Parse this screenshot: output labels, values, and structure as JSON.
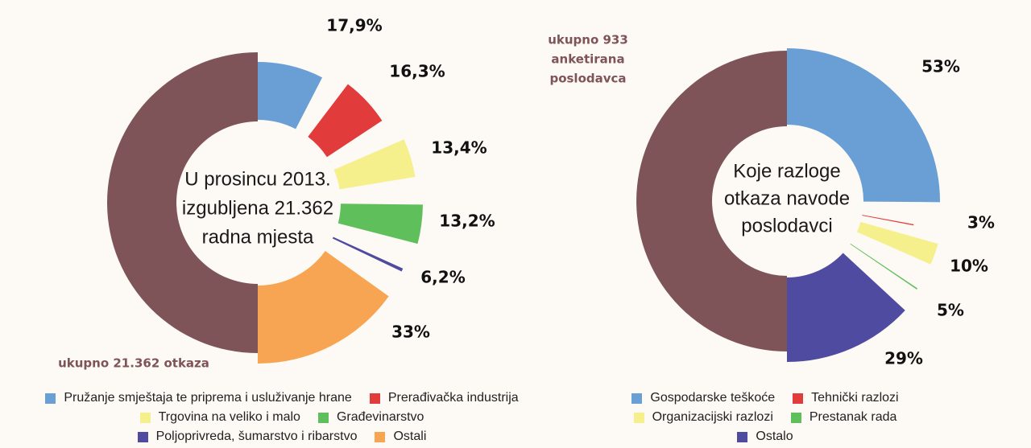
{
  "chart_data": [
    {
      "type": "pie",
      "center_text": [
        "U prosincu 2013.",
        "izgubljena 21.362",
        "radna mjesta"
      ],
      "total_label": "ukupno 21.362 otkaza",
      "slices": [
        {
          "name": "Pružanje smještaja te priprema i usluživanje hrane",
          "value": 17.9,
          "label": "17,9%",
          "color": "#6a9fd6"
        },
        {
          "name": "Prerađivačka industrija",
          "value": 16.3,
          "label": "16,3%",
          "color": "#e23b3b"
        },
        {
          "name": "Trgovina na veliko i malo",
          "value": 13.4,
          "label": "13,4%",
          "color": "#f6f08c"
        },
        {
          "name": "Građevinarstvo",
          "value": 13.2,
          "label": "13,2%",
          "color": "#5fbf5b"
        },
        {
          "name": "Poljoprivreda, šumarstvo i ribarstvo",
          "value": 6.2,
          "label": "6,2%",
          "color": "#4e4ba0"
        },
        {
          "name": "Ostali",
          "value": 33,
          "label": "33%",
          "color": "#f7a553"
        }
      ],
      "total_color": "#7e5458",
      "legend_rows": [
        [
          "Pružanje smještaja te priprema i usluživanje hrane",
          "Prerađivačka industrija"
        ],
        [
          "Trgovina na veliko i malo",
          "Građevinarstvo"
        ],
        [
          "Poljoprivreda, šumarstvo i ribarstvo",
          "Ostali"
        ]
      ]
    },
    {
      "type": "pie",
      "center_text": [
        "Koje razloge",
        "otkaza navode",
        "poslodavci"
      ],
      "total_label": [
        "ukupno 933",
        "anketirana",
        "poslodavca"
      ],
      "slices": [
        {
          "name": "Gospodarske teškoće",
          "value": 53,
          "label": "53%",
          "color": "#6a9fd6"
        },
        {
          "name": "Tehnički razlozi",
          "value": 3,
          "label": "3%",
          "color": "#e23b3b"
        },
        {
          "name": "Organizacijski razlozi",
          "value": 10,
          "label": "10%",
          "color": "#f6f08c"
        },
        {
          "name": "Prestanak rada",
          "value": 5,
          "label": "5%",
          "color": "#5fbf5b"
        },
        {
          "name": "Ostalo",
          "value": 29,
          "label": "29%",
          "color": "#4e4ba0"
        }
      ],
      "total_color": "#7e5458",
      "legend_rows": [
        [
          "Gospodarske teškoće",
          "Tehnički razlozi"
        ],
        [
          "Organizacijski razlozi",
          "Prestanak rada"
        ],
        [
          "Ostalo"
        ]
      ]
    }
  ]
}
